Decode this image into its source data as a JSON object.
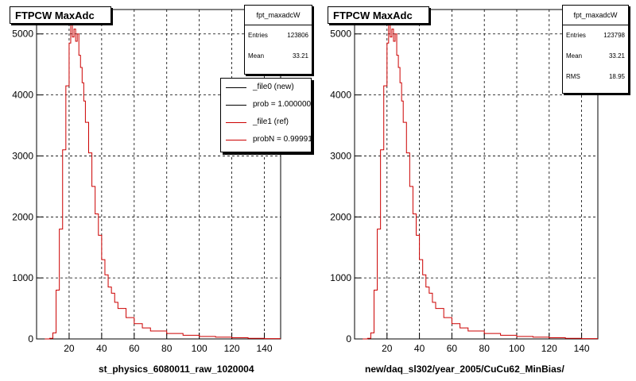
{
  "chart_data": [
    {
      "type": "histogram",
      "title": "FTPCW MaxAdc",
      "xlabel": "st_physics_6080011_raw_1020004",
      "ylabel": "",
      "xlim": [
        0,
        150
      ],
      "ylim": [
        0,
        5400
      ],
      "grid": true,
      "x_ticks": [
        20,
        40,
        60,
        80,
        100,
        120,
        140
      ],
      "y_ticks": [
        0,
        1000,
        2000,
        3000,
        4000,
        5000
      ],
      "stats": {
        "name": "fpt_maxadcW",
        "entries_label": "Entries",
        "entries": "123806",
        "mean_label": "Mean",
        "mean": "33.21"
      },
      "legend": {
        "placement": "top-right",
        "entries": [
          {
            "label": "_file0 (new)",
            "color": "#000000"
          },
          {
            "label": "prob = 1.000000",
            "color": "#000000"
          },
          {
            "label": "_file1 (ref)",
            "color": "#cc0000"
          },
          {
            "label": "probN = 0.999911",
            "color": "#cc0000"
          }
        ]
      },
      "series": [
        {
          "color": "#cc0000",
          "x": [
            5,
            8,
            10,
            12,
            14,
            16,
            18,
            20,
            21,
            22,
            23,
            24,
            25,
            26,
            27,
            28,
            29,
            30,
            32,
            34,
            36,
            38,
            40,
            42,
            44,
            46,
            48,
            50,
            55,
            60,
            65,
            70,
            80,
            90,
            100,
            110,
            120,
            130,
            140,
            150
          ],
          "y": [
            0,
            10,
            100,
            800,
            1800,
            3100,
            4150,
            4850,
            5150,
            4950,
            5080,
            4880,
            5000,
            4650,
            4450,
            4200,
            3900,
            3550,
            3050,
            2500,
            2050,
            1700,
            1300,
            1050,
            850,
            750,
            600,
            500,
            350,
            250,
            180,
            130,
            90,
            60,
            40,
            30,
            20,
            10,
            5,
            5
          ]
        }
      ]
    },
    {
      "type": "histogram",
      "title": "FTPCW MaxAdc",
      "xlabel": "new/daq_sl302/year_2005/CuCu62_MinBias/",
      "ylabel": "",
      "xlim": [
        0,
        150
      ],
      "ylim": [
        0,
        5400
      ],
      "grid": true,
      "x_ticks": [
        20,
        40,
        60,
        80,
        100,
        120,
        140
      ],
      "y_ticks": [
        0,
        1000,
        2000,
        3000,
        4000,
        5000
      ],
      "stats": {
        "name": "fpt_maxadcW",
        "entries_label": "Entries",
        "entries": "123798",
        "mean_label": "Mean",
        "mean": "33.21",
        "rms_label": "RMS",
        "rms": "18.95"
      },
      "series": [
        {
          "color": "#cc0000",
          "x": [
            5,
            8,
            10,
            12,
            14,
            16,
            18,
            20,
            21,
            22,
            23,
            24,
            25,
            26,
            27,
            28,
            29,
            30,
            32,
            34,
            36,
            38,
            40,
            42,
            44,
            46,
            48,
            50,
            55,
            60,
            65,
            70,
            80,
            90,
            100,
            110,
            120,
            130,
            140,
            150
          ],
          "y": [
            0,
            10,
            100,
            800,
            1800,
            3100,
            4150,
            4850,
            5150,
            4950,
            5080,
            4880,
            5000,
            4650,
            4450,
            4200,
            3900,
            3550,
            3050,
            2500,
            2050,
            1700,
            1300,
            1050,
            850,
            750,
            600,
            500,
            350,
            250,
            180,
            130,
            90,
            60,
            40,
            30,
            20,
            10,
            5,
            5
          ]
        }
      ]
    }
  ]
}
